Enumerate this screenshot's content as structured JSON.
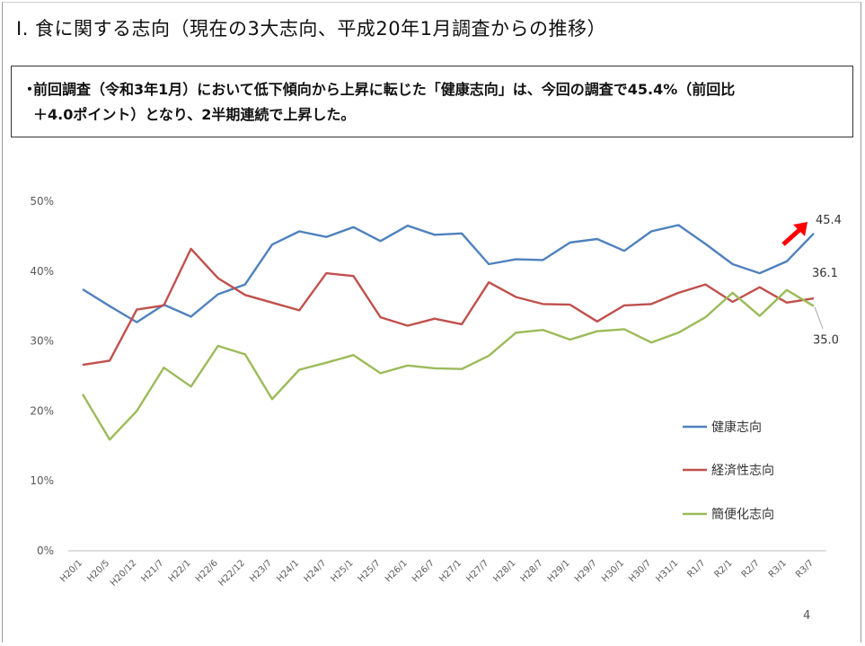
{
  "page": {
    "title": "Ⅰ. 食に関する志向（現在の3大志向、平成20年1月調査からの推移）",
    "summary": {
      "bullet": "・",
      "line1": "前回調査（令和3年1月）において低下傾向から上昇に転じた「健康志向」は、今回の調査で45.4%（前回比",
      "line2": "＋4.0ポイント）となり、2半期連続で上昇した。"
    },
    "page_number": "4"
  },
  "chart_data": {
    "type": "line",
    "title": "",
    "xlabel": "",
    "ylabel": "",
    "ylim": [
      0,
      50
    ],
    "yticks": [
      0,
      10,
      20,
      30,
      40,
      50
    ],
    "ytick_labels": [
      "0%",
      "10%",
      "20%",
      "30%",
      "40%",
      "50%"
    ],
    "grid": false,
    "legend_position": "right",
    "categories": [
      "H20/1",
      "H20/5",
      "H20/12",
      "H21/7",
      "H22/1",
      "H22/6",
      "H22/12",
      "H23/7",
      "H24/1",
      "H24/7",
      "H25/1",
      "H25/7",
      "H26/1",
      "H26/7",
      "H27/1",
      "H27/7",
      "H28/1",
      "H28/7",
      "H29/1",
      "H29/7",
      "H30/1",
      "H30/7",
      "H31/1",
      "R1/7",
      "R2/1",
      "R2/7",
      "R3/1",
      "R3/7"
    ],
    "series": [
      {
        "name": "健康志向",
        "color": "#4f81bd",
        "values": [
          37.4,
          35.0,
          32.7,
          35.2,
          33.5,
          36.7,
          38.1,
          43.8,
          45.7,
          44.9,
          46.3,
          44.3,
          46.5,
          45.2,
          45.4,
          41.0,
          41.7,
          41.6,
          44.1,
          44.6,
          42.9,
          45.7,
          46.6,
          43.9,
          41.0,
          39.7,
          41.4,
          45.4
        ]
      },
      {
        "name": "経済性志向",
        "color": "#c0504d",
        "values": [
          26.6,
          27.2,
          34.5,
          35.1,
          43.2,
          39.0,
          36.6,
          35.5,
          34.4,
          39.7,
          39.3,
          33.4,
          32.2,
          33.2,
          32.4,
          38.4,
          36.3,
          35.3,
          35.2,
          32.8,
          35.1,
          35.3,
          36.9,
          38.1,
          35.6,
          37.7,
          35.5,
          36.1
        ]
      },
      {
        "name": "簡便化志向",
        "color": "#9bbb59",
        "values": [
          22.4,
          15.9,
          20.0,
          26.2,
          23.5,
          29.3,
          28.1,
          21.7,
          25.9,
          26.9,
          28.0,
          25.4,
          26.5,
          26.1,
          26.0,
          27.9,
          31.2,
          31.6,
          30.2,
          31.4,
          31.7,
          29.8,
          31.2,
          33.4,
          36.9,
          33.6,
          37.3,
          35.0
        ]
      }
    ],
    "annotations": [
      {
        "series": "健康志向",
        "text": "45.4",
        "arrow_color": "#ff0000"
      },
      {
        "series": "経済性志向",
        "text": "36.1"
      },
      {
        "series": "簡便化志向",
        "text": "35.0"
      }
    ]
  }
}
